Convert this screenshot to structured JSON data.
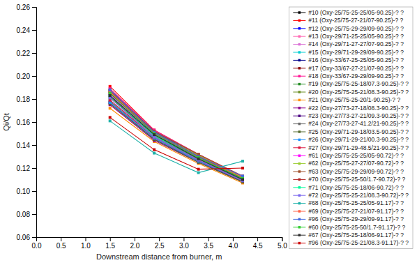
{
  "chart_data": {
    "type": "line",
    "xlabel": "Downstream distance from burner, m",
    "ylabel": "Qi/Qt",
    "x": [
      1.5,
      2.4,
      3.3,
      4.2
    ],
    "xlim": [
      0.0,
      5.0
    ],
    "ylim": [
      0.06,
      0.26
    ],
    "xticks": [
      {
        "value": 0.0,
        "label": "0.0"
      },
      0.5,
      {
        "value": 1.0,
        "label": "1.0"
      },
      1.5,
      {
        "value": 2.0,
        "label": "2.0"
      },
      2.5,
      {
        "value": 3.0,
        "label": "3.0"
      },
      3.5,
      {
        "value": 4.0,
        "label": "4.0"
      },
      4.5,
      {
        "value": 5.0,
        "label": "5.0"
      }
    ],
    "yticks": [
      0.06,
      0.08,
      {
        "value": 0.1,
        "label": "0.10"
      },
      0.12,
      0.14,
      0.16,
      0.18,
      {
        "value": 0.2,
        "label": "0.20"
      },
      0.22,
      0.24,
      0.26
    ],
    "grid": false,
    "legend": "right",
    "marker": "square",
    "series": [
      {
        "name": "#10 (Oxy-25/75-25-25/05-90.25)-? ?",
        "color": "#000000",
        "values": [
          0.185,
          0.15,
          0.13,
          0.11
        ]
      },
      {
        "name": "#11 (Oxy-25/75-27-21/07-90.25)-? ?",
        "color": "#FF0000",
        "values": [
          0.191,
          0.153,
          0.132,
          0.112
        ]
      },
      {
        "name": "#12 (Oxy-25/75-29-29/09-90.25)-? ?",
        "color": "#0000FF",
        "values": [
          0.188,
          0.152,
          0.131,
          0.111
        ]
      },
      {
        "name": "#13 (Oxy-29/71-25-25/05-90.25)-? ?",
        "color": "#FF69B4",
        "values": [
          0.176,
          0.145,
          0.126,
          0.108
        ]
      },
      {
        "name": "#14 (Oxy-29/71-27-27/07-90.25)-? ?",
        "color": "#DA70D6",
        "values": [
          0.177,
          0.146,
          0.127,
          0.109
        ]
      },
      {
        "name": "#15 (Oxy-29/71-29-29/09-90.25)-? ?",
        "color": "#00CED1",
        "values": [
          0.179,
          0.147,
          0.128,
          0.11
        ]
      },
      {
        "name": "#16 (Oxy-33/67-25-25/05-90.25)-? ?",
        "color": "#00008B",
        "values": [
          0.183,
          0.149,
          0.129,
          0.111
        ]
      },
      {
        "name": "#17 (Oxy-33/67-27-21/07-90.25)-? ?",
        "color": "#8B0000",
        "values": [
          0.186,
          0.151,
          0.131,
          0.112
        ]
      },
      {
        "name": "#18 (Oxy-33/67-29-29/09-90.25)-? ?",
        "color": "#FF1493",
        "values": [
          0.189,
          0.153,
          0.132,
          0.113
        ]
      },
      {
        "name": "#19 (Oxy-25/75-25-18/07.3-90.25)-? ?",
        "color": "#228B22",
        "values": [
          0.182,
          0.148,
          0.128,
          0.11
        ]
      },
      {
        "name": "#20 (Oxy-25/75-25-21/08.3-90.25)-? ?",
        "color": "#6B8E23",
        "values": [
          0.181,
          0.148,
          0.128,
          0.11
        ]
      },
      {
        "name": "#21 (Oxy-25/75-25-20/1-90.25)-? ?",
        "color": "#FF8C00",
        "values": [
          0.172,
          0.143,
          0.124,
          0.107
        ]
      },
      {
        "name": "#22 (Oxy-27/73-27-18/08.3-90.25)-? ?",
        "color": "#8B008B",
        "values": [
          0.175,
          0.144,
          0.125,
          0.108
        ]
      },
      {
        "name": "#23 (Oxy-27/73-27-21/09.3-90.25)-? ?",
        "color": "#4B0082",
        "values": [
          0.177,
          0.145,
          0.126,
          0.108
        ]
      },
      {
        "name": "#24 (Oxy-27/73-27-41.2/21-90.25)-? ?",
        "color": "#696969",
        "values": [
          0.178,
          0.146,
          0.126,
          0.109
        ]
      },
      {
        "name": "#25 (Oxy-29/71-29-18/03.5-90.25)-? ?",
        "color": "#556B2F",
        "values": [
          0.176,
          0.145,
          0.125,
          0.108
        ]
      },
      {
        "name": "#26 (Oxy-29/71-29-21/00.3-90.25)-? ?",
        "color": "#1E90FF",
        "values": [
          0.177,
          0.146,
          0.126,
          0.109
        ]
      },
      {
        "name": "#27 (Oxy-29/71-29-48.5/21-90.25)-? ?",
        "color": "#DC143C",
        "values": [
          0.179,
          0.147,
          0.127,
          0.109
        ]
      },
      {
        "name": "#61 (Oxy-25/75-25-25/05-90.72)-? ?",
        "color": "#FF00FF",
        "values": [
          0.184,
          0.15,
          0.13,
          0.111
        ]
      },
      {
        "name": "#62 (Oxy-25/75-27-27/07-90.72)-? ?",
        "color": "#9ACD32",
        "values": [
          0.186,
          0.151,
          0.131,
          0.112
        ]
      },
      {
        "name": "#63 (Oxy-25/75-29-29/09-90.72)-? ?",
        "color": "#A0522D",
        "values": [
          0.188,
          0.152,
          0.132,
          0.113
        ]
      },
      {
        "name": "#70 (Oxy-25/75-25-50/1.7-90.72)-? ?",
        "color": "#B22222",
        "values": [
          0.187,
          0.151,
          0.13,
          0.111
        ]
      },
      {
        "name": "#71 (Oxy-25/75-25-18/06-90.72)-? ?",
        "color": "#00FA9A",
        "values": [
          0.183,
          0.148,
          0.128,
          0.11
        ]
      },
      {
        "name": "#72 (Oxy-25/75-25-21/08.3-90.72)-? ?",
        "color": "#7B68EE",
        "values": [
          0.181,
          0.147,
          0.127,
          0.109
        ]
      },
      {
        "name": "#68 (Oxy-25/75-25-25/05-91.17)-? ?",
        "color": "#20B2AA",
        "values": [
          0.161,
          0.133,
          0.116,
          0.126
        ]
      },
      {
        "name": "#69 (Oxy-25/75-27-21/07-91.17)-? ?",
        "color": "#FF6347",
        "values": [
          0.186,
          0.15,
          0.129,
          0.112
        ]
      },
      {
        "name": "#96 (Oxy-25/75-29-29/09-91.17)-? ?",
        "color": "#4169E1",
        "values": [
          0.188,
          0.151,
          0.13,
          0.113
        ]
      },
      {
        "name": "#60 (Oxy-25/75-25-50/1.7-91.17)-? ?",
        "color": "#32CD32",
        "values": [
          0.185,
          0.15,
          0.129,
          0.111
        ]
      },
      {
        "name": "#67 (Oxy-25/75-25-18/06-91.17)-? ?",
        "color": "#2F2F2F",
        "values": [
          0.183,
          0.149,
          0.128,
          0.11
        ]
      },
      {
        "name": "#96 (Oxy-25/75-25-21/08.3-91.17)-? ?",
        "color": "#CC0000",
        "values": [
          0.164,
          0.136,
          0.119,
          0.12
        ]
      }
    ]
  }
}
